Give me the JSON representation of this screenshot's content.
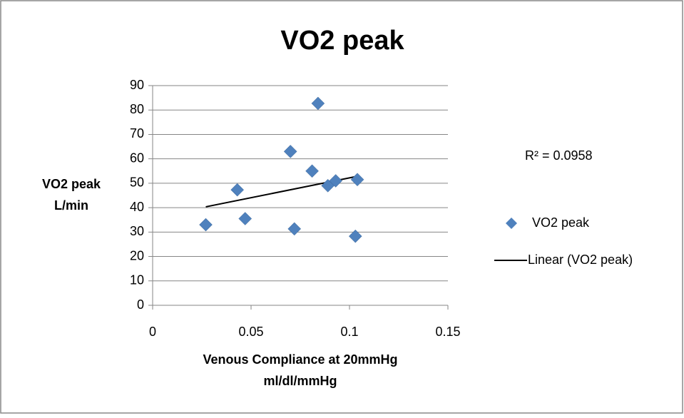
{
  "chart_data": {
    "type": "scatter",
    "title": "VO2 peak",
    "x_label": [
      "Venous Compliance at 20mmHg",
      "ml/dl/mmHg"
    ],
    "y_label": [
      "VO2 peak",
      "L/min"
    ],
    "series": [
      {
        "name": "VO2 peak",
        "color": "#4f81bd",
        "x": [
          0.027,
          0.043,
          0.047,
          0.07,
          0.072,
          0.081,
          0.084,
          0.089,
          0.093,
          0.104,
          0.103
        ],
        "values": [
          33,
          47.3,
          35.5,
          63,
          31.3,
          55,
          82.7,
          49,
          51,
          51.5,
          28.3
        ]
      }
    ],
    "trendline": {
      "name": "Linear (VO2 peak)",
      "color": "#000000",
      "annotation": "R² = 0.0958"
    },
    "xlim": [
      0,
      0.15
    ],
    "xticks": [
      0,
      0.05,
      0.1,
      0.15
    ],
    "ylim": [
      0,
      90
    ],
    "yticks": [
      0,
      10,
      20,
      30,
      40,
      50,
      60,
      70,
      80,
      90
    ],
    "grid": true,
    "legend": "right"
  }
}
